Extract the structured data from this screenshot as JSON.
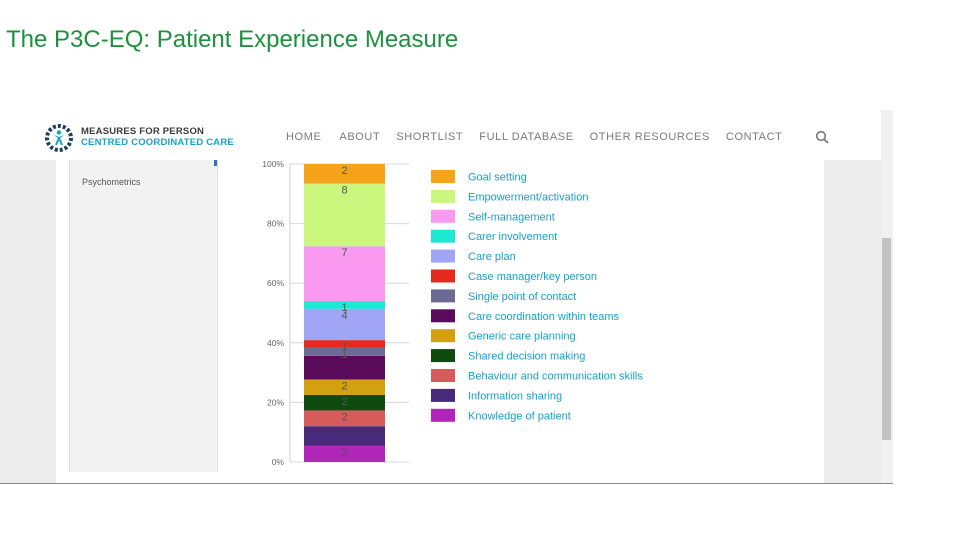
{
  "slide": {
    "title": "The P3C-EQ: Patient Experience Measure"
  },
  "site": {
    "logo_line1": "MEASURES FOR PERSON",
    "logo_line2": "CENTRED COORDINATED CARE",
    "brand_color": "#1aa3c7",
    "nav": [
      "HOME",
      "ABOUT",
      "SHORTLIST",
      "FULL DATABASE",
      "OTHER RESOURCES",
      "CONTACT"
    ],
    "search_icon": "search-icon"
  },
  "sidebar": {
    "items": [
      {
        "label": "Psychometrics"
      }
    ]
  },
  "chart_data": {
    "type": "bar",
    "stacked": true,
    "orientation": "vertical",
    "y_axis": {
      "ticks": [
        "0%",
        "20%",
        "40%",
        "60%",
        "80%",
        "100%"
      ],
      "range": [
        0,
        100
      ],
      "unit": "%"
    },
    "legend_position": "right",
    "segments": [
      {
        "name": "Knowledge of patient",
        "label": "2",
        "color": "#b026b8",
        "from": 0.0,
        "to": 5.4
      },
      {
        "name": "Information sharing",
        "label": "",
        "color": "#472a7a",
        "from": 5.4,
        "to": 12.0
      },
      {
        "name": "Behaviour and communication skills",
        "label": "2",
        "color": "#d65c5c",
        "from": 12.0,
        "to": 17.3
      },
      {
        "name": "Shared decision making",
        "label": "2",
        "color": "#0f4a0f",
        "from": 17.3,
        "to": 22.5
      },
      {
        "name": "Generic care planning",
        "label": "2",
        "color": "#d3a00f",
        "from": 22.5,
        "to": 27.7
      },
      {
        "name": "Care coordination within teams",
        "label": "",
        "color": "#5a0a5a",
        "from": 27.7,
        "to": 35.6
      },
      {
        "name": "Single point of contact",
        "label": "1",
        "color": "#6b6b96",
        "from": 35.6,
        "to": 38.3
      },
      {
        "name": "Case manager/key person",
        "label": "1",
        "color": "#e32a1c",
        "from": 38.3,
        "to": 40.9
      },
      {
        "name": "Care plan",
        "label": "4",
        "color": "#a0a6f5",
        "from": 40.9,
        "to": 51.4
      },
      {
        "name": "Carer involvement",
        "label": "1",
        "color": "#1de8d4",
        "from": 51.4,
        "to": 54.0
      },
      {
        "name": "Self-management",
        "label": "7",
        "color": "#f99af0",
        "from": 54.0,
        "to": 72.4
      },
      {
        "name": "Empowerment/activation",
        "label": "8",
        "color": "#cbf77e",
        "from": 72.4,
        "to": 93.4
      },
      {
        "name": "Goal setting",
        "label": "2",
        "color": "#f7a21b",
        "from": 93.4,
        "to": 100.0
      }
    ],
    "legend_order": [
      "Goal setting",
      "Empowerment/activation",
      "Self-management",
      "Carer involvement",
      "Care plan",
      "Case manager/key person",
      "Single point of contact",
      "Care coordination within teams",
      "Generic care planning",
      "Shared decision making",
      "Behaviour and communication skills",
      "Information sharing",
      "Knowledge of patient"
    ]
  }
}
